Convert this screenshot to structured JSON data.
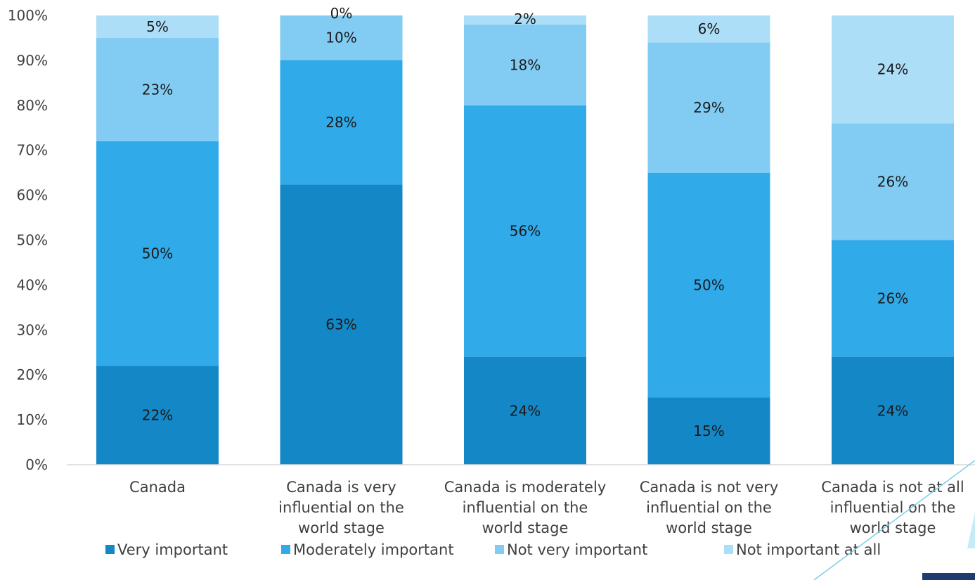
{
  "chart_data": {
    "type": "bar",
    "stacked": true,
    "percent_scale": true,
    "title": "",
    "xlabel": "",
    "ylabel": "",
    "ylim": [
      0,
      100
    ],
    "y_ticks": [
      "0%",
      "10%",
      "20%",
      "30%",
      "40%",
      "50%",
      "60%",
      "70%",
      "80%",
      "90%",
      "100%"
    ],
    "grid": false,
    "legend_position": "bottom",
    "categories": [
      [
        "Canada"
      ],
      [
        "Canada is very",
        "influential on the",
        "world stage"
      ],
      [
        "Canada is moderately",
        "influential on the",
        "world stage"
      ],
      [
        "Canada is not very",
        "influential on the",
        "world stage"
      ],
      [
        "Canada is not at all",
        "influential on the",
        "world stage"
      ]
    ],
    "series": [
      {
        "name": "Very important",
        "color": "#1487C7",
        "values": [
          22,
          63,
          24,
          15,
          24
        ],
        "labels": [
          "22%",
          "63%",
          "24%",
          "15%",
          "24%"
        ]
      },
      {
        "name": "Moderately important",
        "color": "#31AAEA",
        "values": [
          50,
          28,
          56,
          50,
          26
        ],
        "labels": [
          "50%",
          "28%",
          "56%",
          "50%",
          "26%"
        ]
      },
      {
        "name": "Not very important",
        "color": "#82CCF3",
        "values": [
          23,
          10,
          18,
          29,
          26
        ],
        "labels": [
          "23%",
          "10%",
          "18%",
          "29%",
          "26%"
        ]
      },
      {
        "name": "Not important at all",
        "color": "#ADDEF7",
        "values": [
          5,
          0,
          2,
          6,
          24
        ],
        "labels": [
          "5%",
          "0%",
          "2%",
          "6%",
          "24%"
        ]
      }
    ]
  }
}
